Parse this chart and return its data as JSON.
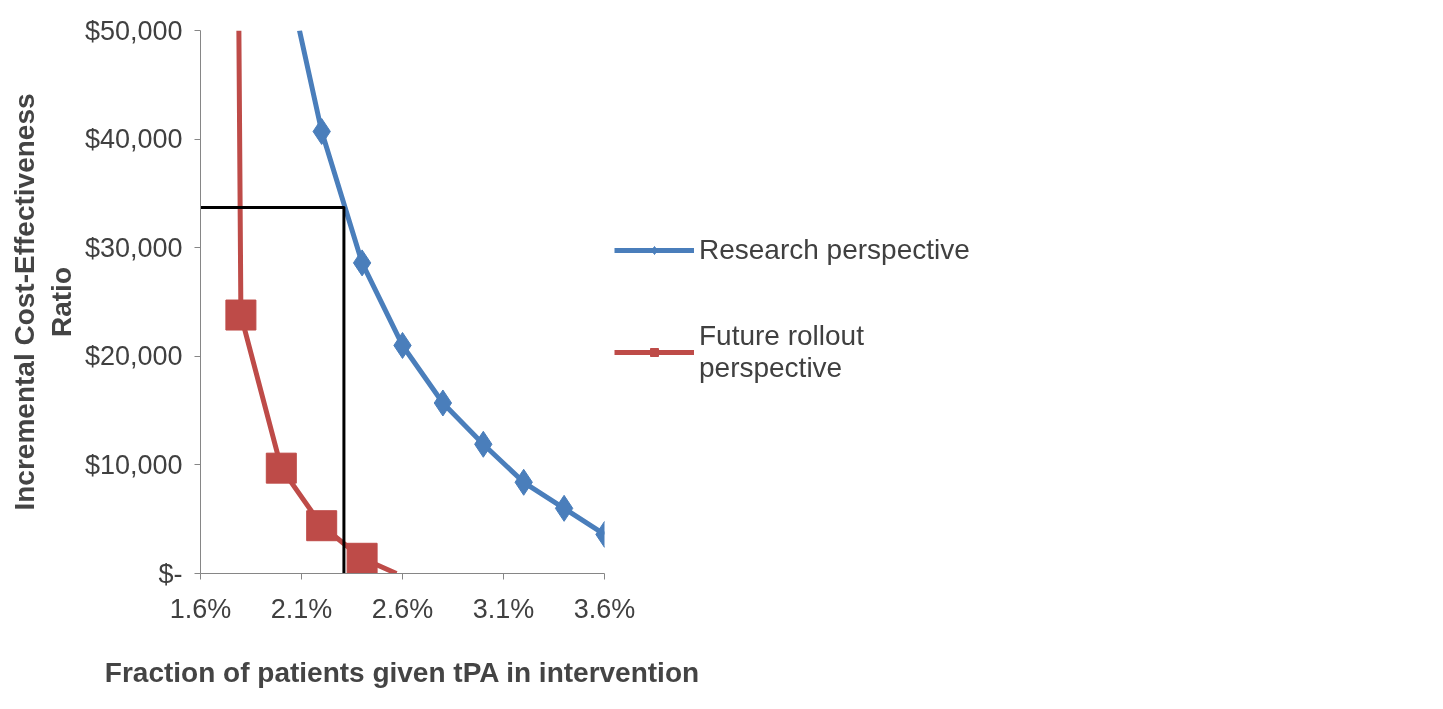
{
  "chart_data": {
    "type": "line",
    "xlabel": "Fraction of patients given tPA in intervention",
    "ylabel": "Incremental Cost-Effectiveness Ratio",
    "xlim": [
      1.6,
      3.6
    ],
    "xticks": [
      {
        "value": 1.6,
        "label": "1.6%"
      },
      {
        "value": 2.1,
        "label": "2.1%"
      },
      {
        "value": 2.6,
        "label": "2.6%"
      },
      {
        "value": 3.1,
        "label": "3.1%"
      },
      {
        "value": 3.6,
        "label": "3.6%"
      }
    ],
    "ylim": [
      0,
      50000
    ],
    "yticks": [
      {
        "value": 0,
        "label": "$-"
      },
      {
        "value": 10000,
        "label": "$10,000"
      },
      {
        "value": 20000,
        "label": "$20,000"
      },
      {
        "value": 30000,
        "label": "$30,000"
      },
      {
        "value": 40000,
        "label": "$40,000"
      },
      {
        "value": 50000,
        "label": "$50,000"
      }
    ],
    "grid": false,
    "legend": "right",
    "line_style": "solid",
    "series": [
      {
        "name": "Research perspective",
        "color": "#4a7ebb",
        "marker": "diamond",
        "x": [
          2.09,
          2.2,
          2.4,
          2.6,
          2.8,
          3.0,
          3.2,
          3.4,
          3.6
        ],
        "values": [
          50000,
          40700,
          28600,
          21000,
          15700,
          11900,
          8400,
          6000,
          3600
        ]
      },
      {
        "name": "Future rollout perspective",
        "color": "#be4b48",
        "marker": "square",
        "x": [
          1.79,
          1.8,
          2.0,
          2.2,
          2.4,
          2.57
        ],
        "values": [
          50000,
          23800,
          9700,
          4400,
          1400,
          0
        ]
      },
      {
        "color": "#000000",
        "marker": "none",
        "x": [
          1.6,
          2.31,
          2.31
        ],
        "values": [
          33700,
          33700,
          0
        ]
      }
    ]
  }
}
